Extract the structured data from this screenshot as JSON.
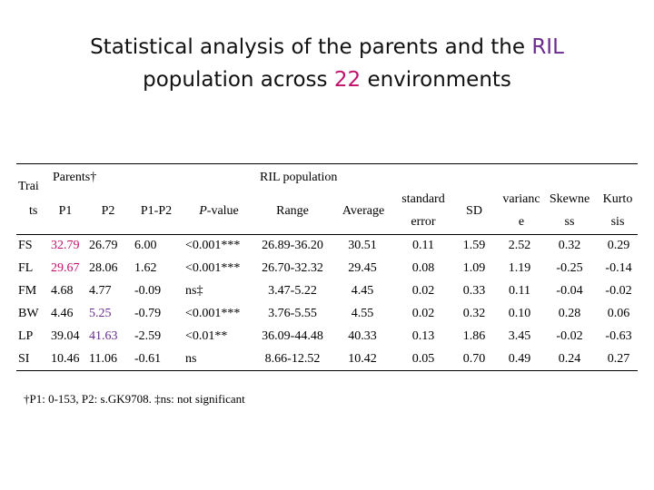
{
  "slide": {
    "title_line1": "Statistical analysis of the parents and the",
    "title_line1_highlight": "RIL",
    "title_line2_pre": "population across",
    "title_line2_highlight": "22",
    "title_line2_post": "environments"
  },
  "table": {
    "group_headers": {
      "parents": "Parents†",
      "ril": "RIL population"
    },
    "headers": {
      "traits_top": "Trai",
      "traits_bottom": "ts",
      "p1": "P1",
      "p2": "P2",
      "p1p2": "P1-P2",
      "pvalue_italic": "P",
      "pvalue_rest": "-value",
      "range": "Range",
      "average": "Average",
      "se_top": "standard",
      "se_bottom": "error",
      "sd": "SD",
      "var_top": "varianc",
      "var_bottom": "e",
      "skew_top": "Skewne",
      "skew_bottom": "ss",
      "kurt_top": "Kurto",
      "kurt_bottom": "sis"
    },
    "rows": [
      {
        "trait": "FS",
        "p1": "32.79",
        "p2": "26.79",
        "p1p2": "6.00",
        "pvalue": "<0.001***",
        "range": "26.89-36.20",
        "average": "30.51",
        "se": "0.11",
        "sd": "1.59",
        "variance": "2.52",
        "skewness": "0.32",
        "kurtosis": "0.29",
        "highlight": "p1"
      },
      {
        "trait": "FL",
        "p1": "29.67",
        "p2": "28.06",
        "p1p2": "1.62",
        "pvalue": "<0.001***",
        "range": "26.70-32.32",
        "average": "29.45",
        "se": "0.08",
        "sd": "1.09",
        "variance": "1.19",
        "skewness": "-0.25",
        "kurtosis": "-0.14",
        "highlight": "p1"
      },
      {
        "trait": "FM",
        "p1": "4.68",
        "p2": "4.77",
        "p1p2": "-0.09",
        "pvalue": "ns‡",
        "range": "3.47-5.22",
        "average": "4.45",
        "se": "0.02",
        "sd": "0.33",
        "variance": "0.11",
        "skewness": "-0.04",
        "kurtosis": "-0.02",
        "highlight": ""
      },
      {
        "trait": "BW",
        "p1": "4.46",
        "p2": "5.25",
        "p1p2": "-0.79",
        "pvalue": "<0.001***",
        "range": "3.76-5.55",
        "average": "4.55",
        "se": "0.02",
        "sd": "0.32",
        "variance": "0.10",
        "skewness": "0.28",
        "kurtosis": "0.06",
        "highlight": "p2"
      },
      {
        "trait": "LP",
        "p1": "39.04",
        "p2": "41.63",
        "p1p2": "-2.59",
        "pvalue": "<0.01**",
        "range": "36.09-44.48",
        "average": "40.33",
        "se": "0.13",
        "sd": "1.86",
        "variance": "3.45",
        "skewness": "-0.02",
        "kurtosis": "-0.63",
        "highlight": "p2"
      },
      {
        "trait": "SI",
        "p1": "10.46",
        "p2": "11.06",
        "p1p2": "-0.61",
        "pvalue": "ns",
        "range": "8.66-12.52",
        "average": "10.42",
        "se": "0.05",
        "sd": "0.70",
        "variance": "0.49",
        "skewness": "0.24",
        "kurtosis": "0.27",
        "highlight": ""
      }
    ]
  },
  "footnote": "†P1: 0-153, P2: s.GK9708. ‡ns: not significant",
  "colors": {
    "pink": "#c0106a",
    "purple": "#6b2c8f"
  }
}
